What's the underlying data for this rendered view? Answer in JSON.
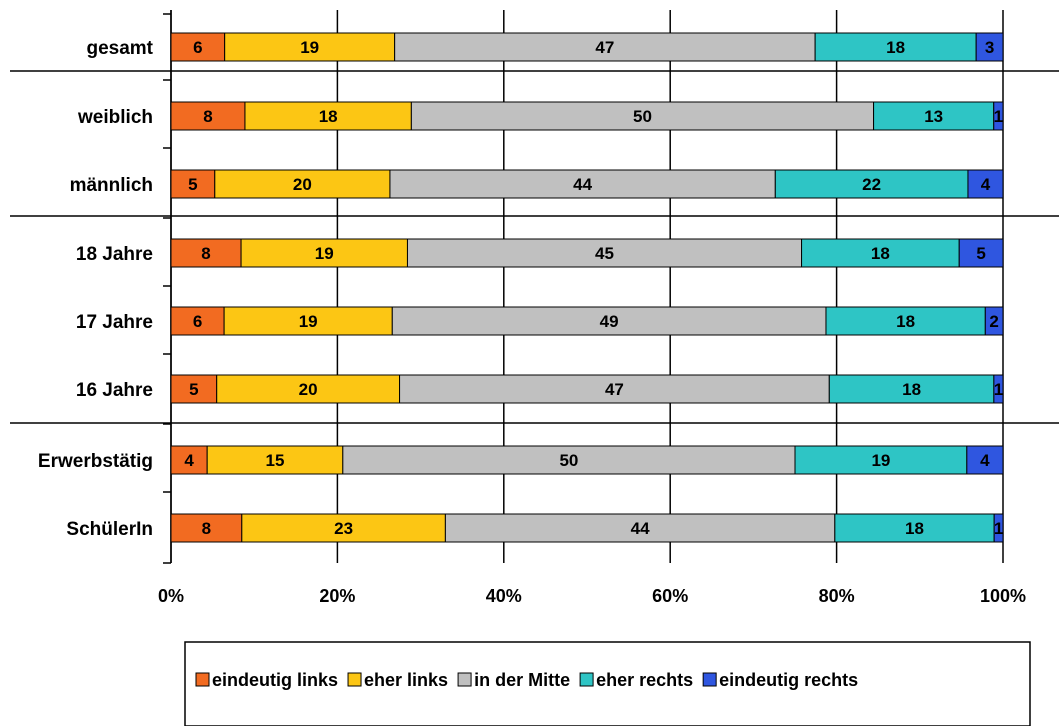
{
  "chart_data": {
    "type": "bar",
    "orientation": "horizontal",
    "stacked": true,
    "percent_stacked": true,
    "title": "",
    "xlabel": "",
    "ylabel": "",
    "xlim": [
      0,
      100
    ],
    "x_ticks": [
      "0%",
      "20%",
      "40%",
      "60%",
      "80%",
      "100%"
    ],
    "grid": "vertical",
    "legend_position": "bottom",
    "categories": [
      "gesamt",
      "weiblich",
      "männlich",
      "18 Jahre",
      "17 Jahre",
      "16 Jahre",
      "Erwerbstätig",
      "SchülerIn"
    ],
    "groups": [
      [
        "gesamt"
      ],
      [
        "weiblich",
        "männlich"
      ],
      [
        "18 Jahre",
        "17 Jahre",
        "16 Jahre"
      ],
      [
        "Erwerbstätig",
        "SchülerIn"
      ]
    ],
    "series": [
      {
        "name": "eindeutig links",
        "color": "#f26b21",
        "values": [
          6,
          8,
          5,
          8,
          6,
          5,
          4,
          8
        ]
      },
      {
        "name": "eher links",
        "color": "#fcc614",
        "values": [
          19,
          18,
          20,
          19,
          19,
          20,
          15,
          23
        ]
      },
      {
        "name": "in der Mitte",
        "color": "#c0c0c0",
        "values": [
          47,
          50,
          44,
          45,
          49,
          47,
          50,
          44
        ]
      },
      {
        "name": "eher rechts",
        "color": "#2ec5c5",
        "values": [
          18,
          13,
          22,
          18,
          18,
          18,
          19,
          18
        ]
      },
      {
        "name": "eindeutig rechts",
        "color": "#2f56e0",
        "values": [
          3,
          1,
          4,
          5,
          2,
          1,
          4,
          1
        ]
      }
    ]
  }
}
